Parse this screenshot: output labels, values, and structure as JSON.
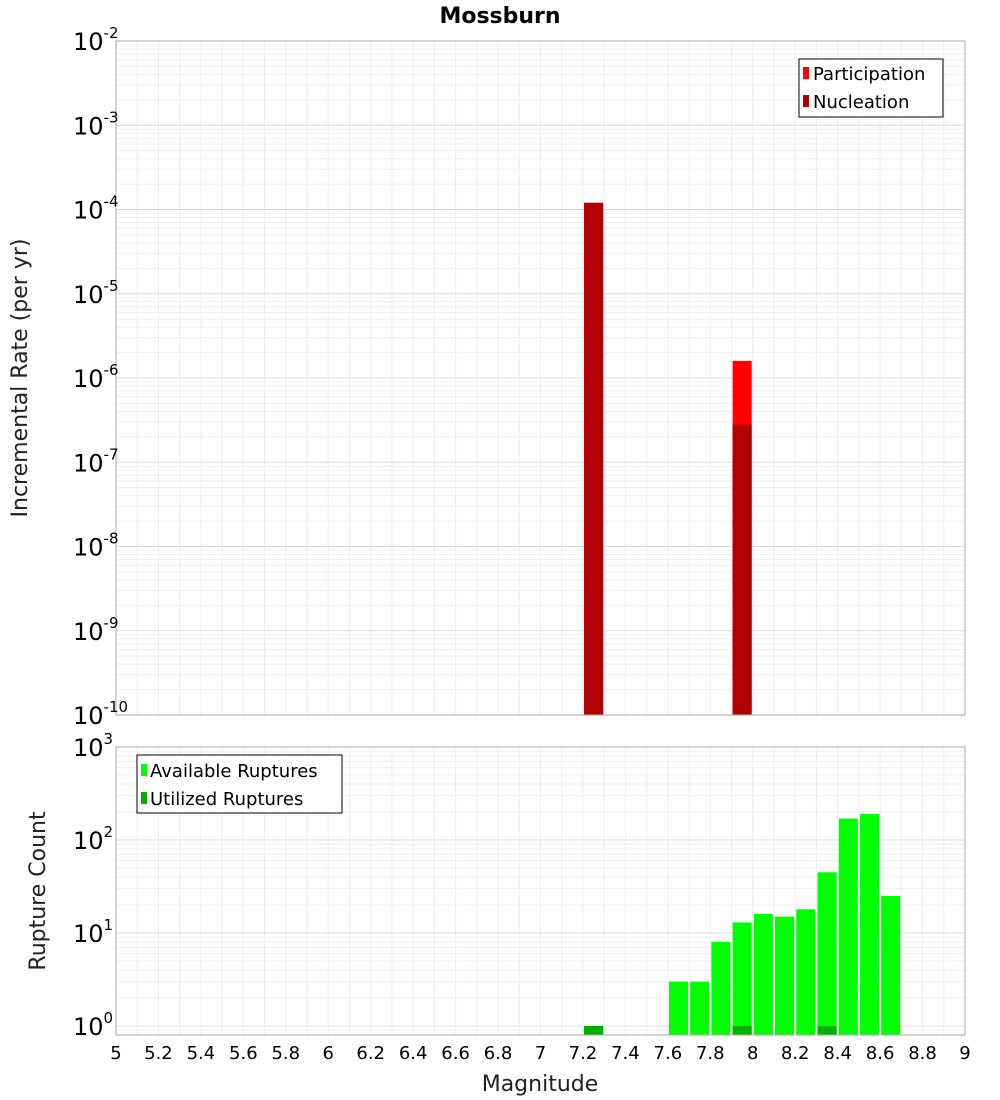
{
  "title": "Mossburn",
  "chart_data": [
    {
      "type": "bar",
      "ylabel": "Incremental Rate (per yr)",
      "xlabel": "",
      "yscale": "log",
      "ylim": [
        1e-10,
        0.01
      ],
      "xlim": [
        5,
        9
      ],
      "y_tick_exponents": [
        "-2",
        "-3",
        "-4",
        "-5",
        "-6",
        "-7",
        "-8",
        "-9",
        "-10"
      ],
      "legend_position": "top-right",
      "grid": true,
      "series": [
        {
          "name": "Participation",
          "color": "#ff0000",
          "x": [
            7.25,
            7.95
          ],
          "values": [
            0.00012,
            1.6e-06
          ]
        },
        {
          "name": "Nucleation",
          "color": "#b20000",
          "x": [
            7.25,
            7.95
          ],
          "values": [
            0.00012,
            2.8e-07
          ]
        }
      ]
    },
    {
      "type": "bar",
      "ylabel": "Rupture Count",
      "xlabel": "Magnitude",
      "yscale": "log",
      "ylim": [
        0.8,
        1000
      ],
      "xlim": [
        5,
        9
      ],
      "y_tick_exponents": [
        "3",
        "2",
        "1",
        "0"
      ],
      "x_ticks": [
        "5",
        "5.2",
        "5.4",
        "5.6",
        "5.8",
        "6",
        "6.2",
        "6.4",
        "6.6",
        "6.8",
        "7",
        "7.2",
        "7.4",
        "7.6",
        "7.8",
        "8",
        "8.2",
        "8.4",
        "8.6",
        "8.8",
        "9"
      ],
      "legend_position": "top-left",
      "grid": true,
      "series": [
        {
          "name": "Available Ruptures",
          "color": "#00ff00",
          "x": [
            7.65,
            7.75,
            7.85,
            7.95,
            8.05,
            8.15,
            8.25,
            8.35,
            8.45,
            8.55,
            8.65
          ],
          "values": [
            3,
            3,
            8,
            13,
            16,
            15,
            18,
            45,
            170,
            190,
            25
          ]
        },
        {
          "name": "Utilized Ruptures",
          "color": "#00b200",
          "x": [
            7.25,
            7.95,
            8.35
          ],
          "values": [
            1,
            1,
            1
          ]
        }
      ]
    }
  ]
}
